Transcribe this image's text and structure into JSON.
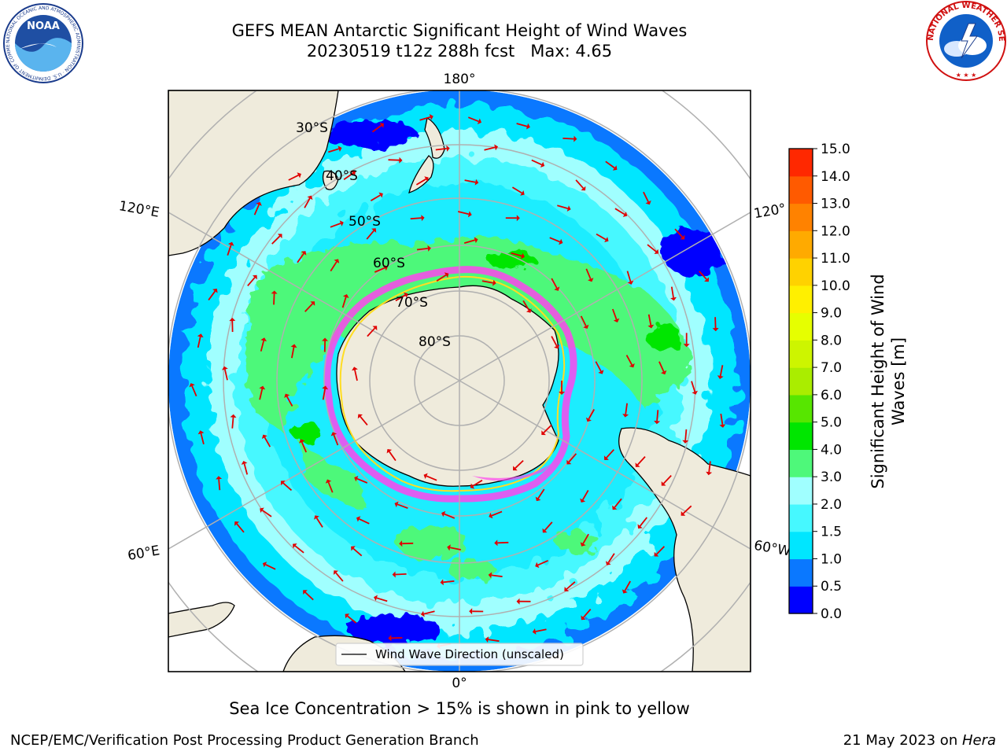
{
  "title": {
    "line1": "GEFS MEAN Antarctic Significant Height of Wind Waves",
    "line2": "20230519 t12z 288h fcst   Max: 4.65"
  },
  "map": {
    "projection": "south-polar-stereographic",
    "longitude_labels": {
      "top": "180°",
      "bottom": "0°",
      "left_upper": "120°E",
      "left_lower": "60°E",
      "right_upper": "120°",
      "right_lower": "60°W"
    },
    "latitude_labels": [
      "30°S",
      "40°S",
      "50°S",
      "60°S",
      "70°S",
      "80°S"
    ],
    "legend_label": "Wind Wave Direction (unscaled)",
    "vector_color": "#e00000",
    "land_color": "#efebdc",
    "ice_colors": [
      "#ff44ee",
      "#ffdd22"
    ]
  },
  "colorbar": {
    "label_line1": "Significant Height of Wind",
    "label_line2": "Waves [m]",
    "ticks": [
      "0.0",
      "0.5",
      "1.0",
      "1.5",
      "2.0",
      "3.0",
      "4.0",
      "5.0",
      "6.0",
      "7.0",
      "8.0",
      "9.0",
      "10.0",
      "11.0",
      "12.0",
      "13.0",
      "14.0",
      "15.0"
    ],
    "colors": [
      "#0000ff",
      "#0a78ff",
      "#00e6ff",
      "#46f8ff",
      "#a0ffff",
      "#4ef87a",
      "#00e600",
      "#57e600",
      "#aaed00",
      "#cdf500",
      "#e6ff00",
      "#fff000",
      "#ffd200",
      "#ffaa00",
      "#ff8200",
      "#ff5a00",
      "#ff2800"
    ]
  },
  "caption": "Sea Ice Concentration > 15% is shown in pink to yellow",
  "footer": {
    "left": "NCEP/EMC/Verification Post Processing Product Generation Branch",
    "date": "21 May 2023 on ",
    "machine": "Hera"
  },
  "logos": {
    "noaa_text": "NOAA",
    "noaa_ring": "NATIONAL OCEANIC AND ATMOSPHERIC ADMINISTRATION · U.S. DEPARTMENT OF COMMERCE",
    "nws_ring": "NATIONAL WEATHER SERVICE"
  }
}
